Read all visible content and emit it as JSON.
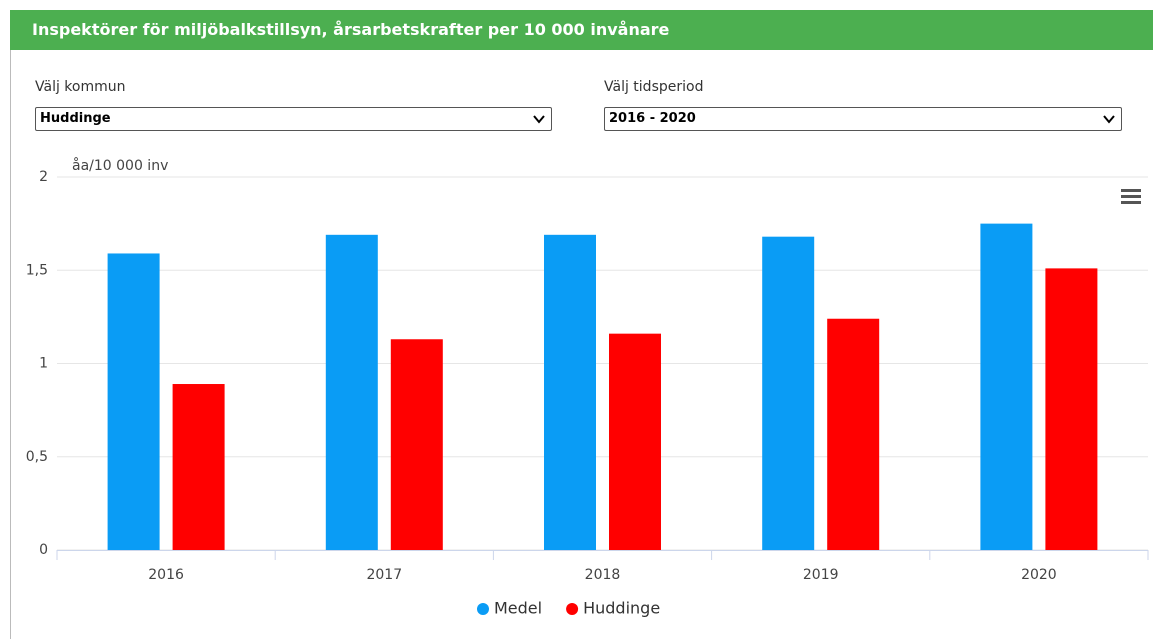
{
  "header": {
    "title": "Inspektörer för miljöbalkstillsyn, årsarbetskrafter per 10 000 invånare"
  },
  "controls": {
    "municipality_label": "Välj kommun",
    "municipality_value": "Huddinge",
    "period_label": "Välj tidsperiod",
    "period_value": "2016 - 2020"
  },
  "chart_data": {
    "type": "bar",
    "y_axis_title": "åa/10 000 inv",
    "categories": [
      "2016",
      "2017",
      "2018",
      "2019",
      "2020"
    ],
    "series": [
      {
        "name": "Medel",
        "color": "#0a9cf5",
        "values": [
          1.59,
          1.69,
          1.69,
          1.68,
          1.75
        ]
      },
      {
        "name": "Huddinge",
        "color": "#ff0000",
        "values": [
          0.89,
          1.13,
          1.16,
          1.24,
          1.51
        ]
      }
    ],
    "ylim": [
      0,
      2
    ],
    "yticks": [
      0,
      {
        "value": 0.5,
        "label": "0,5"
      },
      1,
      {
        "value": 1.5,
        "label": "1,5"
      },
      2
    ],
    "grid": true,
    "legend": "bottom"
  }
}
